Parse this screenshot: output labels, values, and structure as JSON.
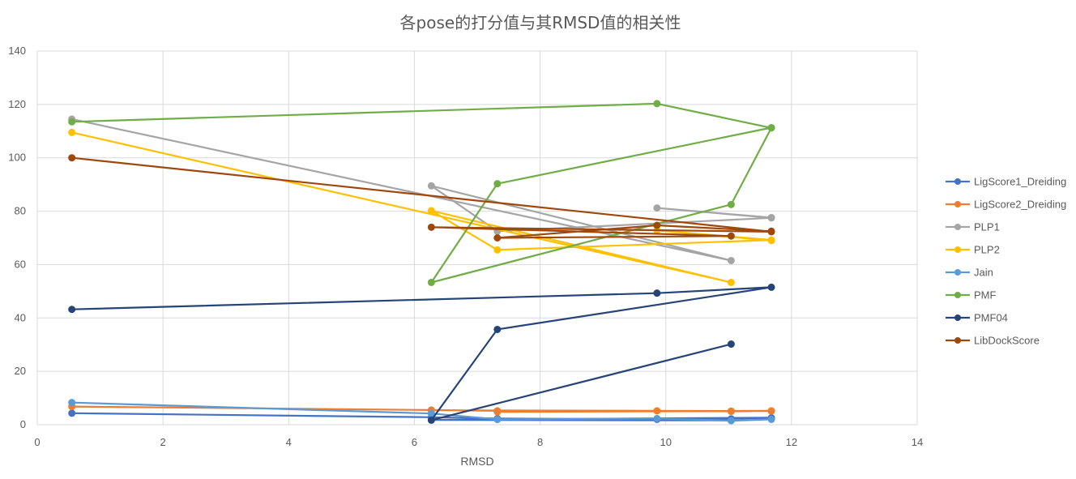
{
  "chart_data": {
    "type": "line",
    "title": "各pose的打分值与其RMSD值的相关性",
    "xlabel": "RMSD",
    "ylabel": "",
    "xlim": [
      0,
      14
    ],
    "ylim": [
      0,
      140
    ],
    "xticks": [
      0,
      2,
      4,
      6,
      8,
      10,
      12,
      14
    ],
    "yticks": [
      0,
      20,
      40,
      60,
      80,
      100,
      120,
      140
    ],
    "x_tick_labels": [
      "0",
      "2",
      "4",
      "6",
      "8",
      "10",
      "12",
      "14"
    ],
    "y_tick_labels": [
      "0",
      "20",
      "40",
      "60",
      "80",
      "100",
      "120",
      "140"
    ],
    "grid": true,
    "legend_position": "right",
    "series": [
      {
        "name": "LigScore1_Dreiding",
        "color": "#4472c4",
        "points": [
          [
            0.55,
            4.3
          ],
          [
            6.27,
            2.8
          ],
          [
            7.32,
            2.3
          ],
          [
            9.86,
            2.0
          ],
          [
            11.04,
            2.2
          ],
          [
            11.68,
            2.6
          ],
          [
            7.32,
            2.0
          ],
          [
            11.04,
            1.6
          ],
          [
            6.27,
            1.8
          ],
          [
            11.68,
            2.5
          ]
        ]
      },
      {
        "name": "LigScore2_Dreiding",
        "color": "#ed7d31",
        "points": [
          [
            0.55,
            6.8
          ],
          [
            6.27,
            5.5
          ],
          [
            7.32,
            5.2
          ],
          [
            9.86,
            5.2
          ],
          [
            11.04,
            5.0
          ],
          [
            11.68,
            5.2
          ],
          [
            7.32,
            4.8
          ],
          [
            11.04,
            5.1
          ],
          [
            6.27,
            5.4
          ],
          [
            11.68,
            5.1
          ]
        ]
      },
      {
        "name": "PLP1",
        "color": "#a5a5a5",
        "points": [
          [
            0.55,
            114.5
          ],
          [
            11.04,
            61.5
          ],
          [
            6.27,
            89.5
          ],
          [
            7.32,
            72.5
          ],
          [
            11.68,
            77.5
          ],
          [
            9.86,
            81.2
          ],
          [
            11.68,
            77.6
          ]
        ]
      },
      {
        "name": "PLP2",
        "color": "#ffc000",
        "points": [
          [
            0.55,
            109.5
          ],
          [
            11.04,
            53.3
          ],
          [
            6.27,
            80.2
          ],
          [
            7.32,
            65.5
          ],
          [
            11.68,
            69.2
          ],
          [
            9.86,
            72.8
          ],
          [
            11.68,
            69.0
          ]
        ]
      },
      {
        "name": "Jain",
        "color": "#5b9bd5",
        "points": [
          [
            0.55,
            8.3
          ],
          [
            6.27,
            4.2
          ],
          [
            7.32,
            2.0
          ],
          [
            9.86,
            2.3
          ],
          [
            11.04,
            1.5
          ],
          [
            11.68,
            2.0
          ]
        ]
      },
      {
        "name": "PMF",
        "color": "#70ad47",
        "points": [
          [
            0.55,
            113.5
          ],
          [
            9.86,
            120.3
          ],
          [
            11.68,
            111.2
          ],
          [
            11.04,
            82.5
          ],
          [
            6.27,
            53.3
          ],
          [
            7.32,
            90.3
          ],
          [
            11.68,
            111.3
          ]
        ]
      },
      {
        "name": "PMF04",
        "color": "#264478",
        "points": [
          [
            0.55,
            43.2
          ],
          [
            9.86,
            49.3
          ],
          [
            11.68,
            51.5
          ],
          [
            7.32,
            35.7
          ],
          [
            6.27,
            1.7
          ],
          [
            11.04,
            30.2
          ]
        ]
      },
      {
        "name": "LibDockScore",
        "color": "#9e480e",
        "points": [
          [
            0.55,
            100.0
          ],
          [
            11.68,
            72.3
          ],
          [
            6.27,
            74.0
          ],
          [
            11.04,
            70.7
          ],
          [
            7.32,
            70.0
          ],
          [
            9.86,
            74.7
          ],
          [
            11.68,
            72.5
          ]
        ]
      }
    ]
  }
}
